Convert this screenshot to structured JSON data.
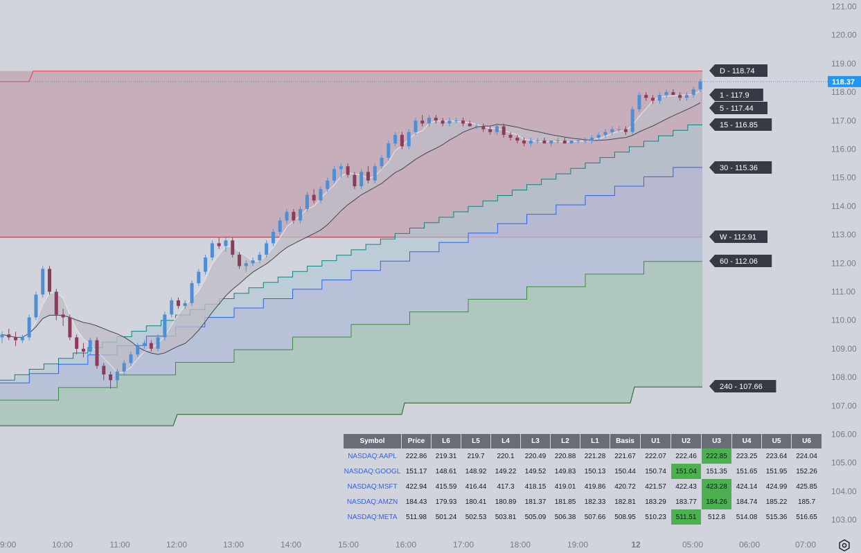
{
  "chart_data": {
    "type": "candlestick",
    "y_axis": {
      "min": 103,
      "max": 121,
      "ticks": [
        "121.00",
        "120.00",
        "119.00",
        "118.00",
        "117.00",
        "116.00",
        "115.00",
        "114.00",
        "113.00",
        "112.00",
        "111.00",
        "110.00",
        "109.00",
        "108.00",
        "107.00",
        "106.00",
        "105.00",
        "104.00",
        "103.00"
      ]
    },
    "x_axis": {
      "ticks": [
        "9:00",
        "10:00",
        "11:00",
        "12:00",
        "13:00",
        "14:00",
        "15:00",
        "16:00",
        "17:00",
        "18:00",
        "19:00",
        "12",
        "05:00",
        "06:00",
        "07:00"
      ]
    },
    "last_price": "118.37",
    "levels": [
      {
        "label": "D - 118.74",
        "value": 118.74,
        "color": "#f23645"
      },
      {
        "label": "1 - 117.9",
        "value": 117.9,
        "color": "#434651"
      },
      {
        "label": "5 - 117.44",
        "value": 117.44,
        "color": "#434651"
      },
      {
        "label": "15 - 116.85",
        "value": 116.85,
        "color": "#00897b"
      },
      {
        "label": "30 - 115.36",
        "value": 115.36,
        "color": "#2962ff"
      },
      {
        "label": "W - 112.91",
        "value": 112.91,
        "color": "#b22833"
      },
      {
        "label": "60 - 112.06",
        "value": 112.06,
        "color": "#388e3c"
      },
      {
        "label": "240 - 107.66",
        "value": 107.66,
        "color": "#1b5e20"
      }
    ],
    "candles": [
      [
        109.4,
        109.6,
        109.2,
        109.5
      ],
      [
        109.5,
        109.7,
        109.3,
        109.4
      ],
      [
        109.4,
        109.6,
        109.1,
        109.3
      ],
      [
        109.3,
        109.5,
        109.2,
        109.4
      ],
      [
        109.4,
        110.2,
        109.3,
        110.1
      ],
      [
        110.1,
        111.0,
        110.0,
        110.9
      ],
      [
        110.9,
        111.9,
        110.8,
        111.8
      ],
      [
        111.8,
        111.9,
        110.9,
        111.0
      ],
      [
        111.0,
        111.1,
        110.0,
        110.2
      ],
      [
        110.2,
        110.4,
        109.8,
        110.1
      ],
      [
        110.1,
        110.2,
        109.3,
        109.4
      ],
      [
        109.4,
        109.5,
        108.8,
        109.0
      ],
      [
        109.0,
        109.2,
        108.7,
        108.9
      ],
      [
        108.9,
        109.4,
        108.8,
        109.3
      ],
      [
        109.3,
        109.4,
        108.3,
        108.4
      ],
      [
        108.4,
        108.5,
        107.9,
        108.1
      ],
      [
        108.1,
        108.2,
        107.6,
        107.9
      ],
      [
        107.9,
        108.3,
        107.8,
        108.2
      ],
      [
        108.2,
        108.6,
        108.1,
        108.5
      ],
      [
        108.5,
        108.9,
        108.4,
        108.8
      ],
      [
        108.8,
        109.2,
        108.7,
        109.1
      ],
      [
        109.1,
        109.3,
        109.0,
        109.2
      ],
      [
        109.2,
        109.3,
        108.9,
        109.0
      ],
      [
        109.0,
        109.5,
        108.9,
        109.4
      ],
      [
        109.4,
        110.3,
        109.3,
        110.2
      ],
      [
        110.2,
        110.8,
        110.1,
        110.7
      ],
      [
        110.7,
        110.8,
        110.4,
        110.5
      ],
      [
        110.5,
        110.7,
        110.4,
        110.6
      ],
      [
        110.6,
        111.4,
        110.5,
        111.3
      ],
      [
        111.3,
        111.8,
        111.2,
        111.7
      ],
      [
        111.7,
        112.3,
        111.6,
        112.2
      ],
      [
        112.2,
        112.8,
        112.1,
        112.7
      ],
      [
        112.7,
        112.9,
        112.5,
        112.6
      ],
      [
        112.6,
        112.9,
        112.4,
        112.8
      ],
      [
        112.8,
        112.9,
        112.2,
        112.3
      ],
      [
        112.3,
        112.4,
        111.8,
        111.9
      ],
      [
        111.9,
        112.1,
        111.7,
        112.0
      ],
      [
        112.0,
        112.2,
        111.9,
        112.1
      ],
      [
        112.1,
        112.4,
        112.0,
        112.3
      ],
      [
        112.3,
        112.8,
        112.2,
        112.7
      ],
      [
        112.7,
        113.2,
        112.6,
        113.1
      ],
      [
        113.1,
        113.6,
        113.0,
        113.5
      ],
      [
        113.5,
        113.9,
        113.4,
        113.8
      ],
      [
        113.8,
        113.9,
        113.4,
        113.5
      ],
      [
        113.5,
        114.0,
        113.4,
        113.9
      ],
      [
        113.9,
        114.5,
        113.8,
        114.4
      ],
      [
        114.4,
        114.6,
        114.1,
        114.2
      ],
      [
        114.2,
        114.7,
        114.1,
        114.6
      ],
      [
        114.6,
        115.0,
        114.5,
        114.9
      ],
      [
        114.9,
        115.4,
        114.8,
        115.3
      ],
      [
        115.3,
        115.5,
        115.0,
        115.4
      ],
      [
        115.4,
        115.5,
        115.0,
        115.1
      ],
      [
        115.1,
        115.2,
        114.6,
        114.7
      ],
      [
        114.7,
        115.3,
        114.6,
        115.2
      ],
      [
        115.2,
        115.4,
        114.8,
        114.9
      ],
      [
        114.9,
        115.5,
        114.8,
        115.4
      ],
      [
        115.4,
        115.8,
        115.3,
        115.7
      ],
      [
        115.7,
        116.3,
        115.6,
        116.2
      ],
      [
        116.2,
        116.6,
        116.1,
        116.5
      ],
      [
        116.5,
        116.6,
        116.0,
        116.1
      ],
      [
        116.1,
        116.7,
        116.0,
        116.6
      ],
      [
        116.6,
        117.1,
        116.5,
        117.0
      ],
      [
        117.0,
        117.2,
        116.8,
        116.9
      ],
      [
        116.9,
        117.2,
        116.8,
        117.1
      ],
      [
        117.1,
        117.2,
        116.9,
        117.0
      ],
      [
        117.0,
        117.1,
        116.8,
        116.9
      ],
      [
        116.9,
        117.1,
        116.8,
        117.0
      ],
      [
        117.0,
        117.1,
        116.9,
        117.0
      ],
      [
        117.0,
        117.1,
        116.8,
        116.9
      ],
      [
        116.9,
        117.0,
        116.8,
        116.8
      ],
      [
        116.8,
        116.9,
        116.7,
        116.8
      ],
      [
        116.8,
        116.9,
        116.6,
        116.7
      ],
      [
        116.7,
        116.8,
        116.5,
        116.6
      ],
      [
        116.6,
        116.9,
        116.5,
        116.8
      ],
      [
        116.8,
        116.9,
        116.4,
        116.5
      ],
      [
        116.5,
        116.6,
        116.3,
        116.4
      ],
      [
        116.4,
        116.5,
        116.2,
        116.3
      ],
      [
        116.3,
        116.4,
        116.1,
        116.2
      ],
      [
        116.2,
        116.4,
        116.1,
        116.3
      ],
      [
        116.3,
        116.4,
        116.2,
        116.3
      ],
      [
        116.3,
        116.4,
        116.2,
        116.2
      ],
      [
        116.2,
        116.3,
        116.1,
        116.3
      ],
      [
        116.3,
        116.4,
        116.2,
        116.3
      ],
      [
        116.3,
        116.4,
        116.2,
        116.2
      ],
      [
        116.2,
        116.3,
        116.2,
        116.3
      ],
      [
        116.3,
        116.4,
        116.2,
        116.3
      ],
      [
        116.3,
        116.4,
        116.2,
        116.3
      ],
      [
        116.3,
        116.5,
        116.2,
        116.4
      ],
      [
        116.4,
        116.6,
        116.3,
        116.5
      ],
      [
        116.5,
        116.7,
        116.4,
        116.6
      ],
      [
        116.6,
        116.8,
        116.5,
        116.7
      ],
      [
        116.7,
        116.8,
        116.6,
        116.7
      ],
      [
        116.7,
        116.8,
        116.5,
        116.6
      ],
      [
        116.6,
        117.5,
        116.5,
        117.4
      ],
      [
        117.4,
        118.0,
        117.3,
        117.9
      ],
      [
        117.9,
        118.0,
        117.7,
        117.8
      ],
      [
        117.8,
        117.9,
        117.6,
        117.7
      ],
      [
        117.7,
        118.0,
        117.6,
        117.9
      ],
      [
        117.9,
        118.1,
        117.8,
        118.0
      ],
      [
        118.0,
        118.1,
        117.9,
        117.9
      ],
      [
        117.9,
        118.0,
        117.7,
        117.8
      ],
      [
        117.8,
        118.0,
        117.7,
        117.9
      ],
      [
        117.9,
        118.2,
        117.8,
        118.1
      ],
      [
        118.1,
        118.45,
        118.0,
        118.37
      ]
    ]
  },
  "table": {
    "headers": [
      "Symbol",
      "Price",
      "L6",
      "L5",
      "L4",
      "L3",
      "L2",
      "L1",
      "Basis",
      "U1",
      "U2",
      "U3",
      "U4",
      "U5",
      "U6"
    ],
    "rows": [
      {
        "cells": [
          "NASDAQ:AAPL",
          "222.86",
          "219.31",
          "219.7",
          "220.1",
          "220.49",
          "220.88",
          "221.28",
          "221.67",
          "222.07",
          "222.46",
          "222.85",
          "223.25",
          "223.64",
          "224.04"
        ],
        "highlight": 11
      },
      {
        "cells": [
          "NASDAQ:GOOGL",
          "151.17",
          "148.61",
          "148.92",
          "149.22",
          "149.52",
          "149.83",
          "150.13",
          "150.44",
          "150.74",
          "151.04",
          "151.35",
          "151.65",
          "151.95",
          "152.26"
        ],
        "highlight": 10
      },
      {
        "cells": [
          "NASDAQ:MSFT",
          "422.94",
          "415.59",
          "416.44",
          "417.3",
          "418.15",
          "419.01",
          "419.86",
          "420.72",
          "421.57",
          "422.43",
          "423.28",
          "424.14",
          "424.99",
          "425.85"
        ],
        "highlight": 11
      },
      {
        "cells": [
          "NASDAQ:AMZN",
          "184.43",
          "179.93",
          "180.41",
          "180.89",
          "181.37",
          "181.85",
          "182.33",
          "182.81",
          "183.29",
          "183.77",
          "184.26",
          "184.74",
          "185.22",
          "185.7"
        ],
        "highlight": 11
      },
      {
        "cells": [
          "NASDAQ:META",
          "511.98",
          "501.24",
          "502.53",
          "503.81",
          "505.09",
          "506.38",
          "507.66",
          "508.95",
          "510.23",
          "511.51",
          "512.8",
          "514.08",
          "515.36",
          "516.65"
        ],
        "highlight": 10
      }
    ]
  },
  "colors": {
    "up": "#4d8fd6",
    "down": "#8e3b5a",
    "price_tag": "#2196f3"
  }
}
